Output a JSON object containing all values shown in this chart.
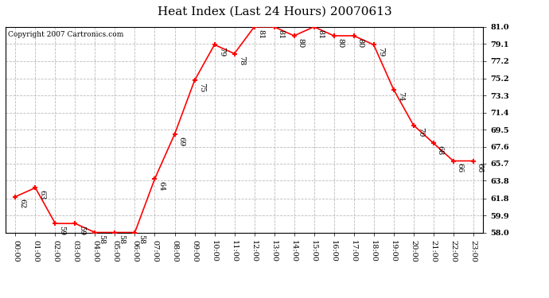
{
  "title": "Heat Index (Last 24 Hours) 20070613",
  "copyright": "Copyright 2007 Cartronics.com",
  "x_labels": [
    "00:00",
    "01:00",
    "02:00",
    "03:00",
    "04:00",
    "05:00",
    "06:00",
    "07:00",
    "08:00",
    "09:00",
    "10:00",
    "11:00",
    "12:00",
    "13:00",
    "14:00",
    "15:00",
    "16:00",
    "17:00",
    "18:00",
    "19:00",
    "20:00",
    "21:00",
    "22:00",
    "23:00"
  ],
  "y_values": [
    62,
    63,
    59,
    59,
    58,
    58,
    58,
    64,
    69,
    75,
    79,
    78,
    81,
    81,
    80,
    81,
    80,
    80,
    79,
    74,
    70,
    68,
    66,
    66
  ],
  "ylim_min": 58.0,
  "ylim_max": 81.0,
  "y_ticks": [
    58.0,
    59.9,
    61.8,
    63.8,
    65.7,
    67.6,
    69.5,
    71.4,
    73.3,
    75.2,
    77.2,
    79.1,
    81.0
  ],
  "y_tick_labels": [
    "58.0",
    "59.9",
    "61.8",
    "63.8",
    "65.7",
    "67.6",
    "69.5",
    "71.4",
    "73.3",
    "75.2",
    "77.2",
    "79.1",
    "81.0"
  ],
  "line_color": "#ff0000",
  "marker": "+",
  "marker_color": "#ff0000",
  "bg_color": "#ffffff",
  "grid_color": "#bbbbbb",
  "title_fontsize": 11,
  "tick_fontsize": 7,
  "annotation_fontsize": 7,
  "copyright_fontsize": 6.5
}
